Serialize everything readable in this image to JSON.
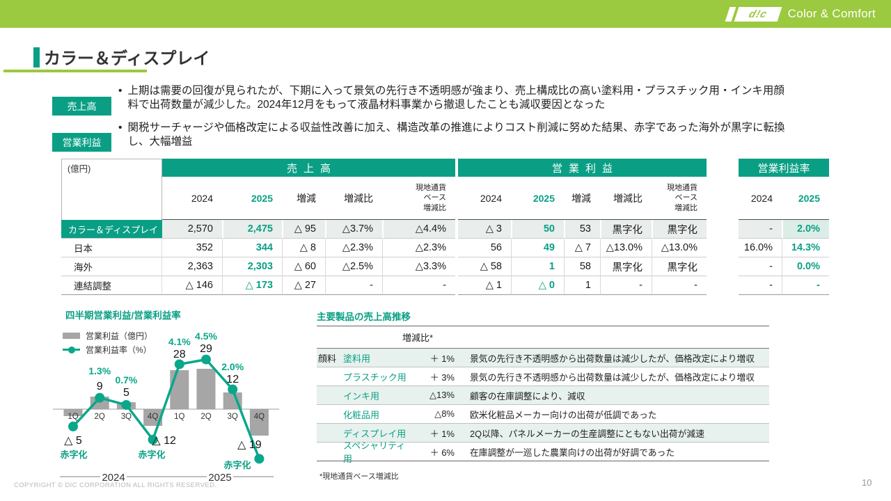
{
  "brand": {
    "logo_text": "d!c",
    "tagline": "Color & Comfort"
  },
  "page": {
    "title": "カラー＆ディスプレイ",
    "copyright": "COPYRIGHT © DIC CORPORATION ALL RIGHTS RESERVED.",
    "page_number": "10"
  },
  "colors": {
    "accent": "#0a9f85",
    "banner_green": "#9bc93f",
    "bar_gray": "#a6a6a6",
    "line_teal": "#0aa78b"
  },
  "summary": [
    {
      "label": "売上高",
      "bullet": "•",
      "text": "上期は需要の回復が見られたが、下期に入って景気の先行き不透明感が強まり、売上構成比の高い塗料用・プラスチック用・インキ用顔料で出荷数量が減少した。2024年12月をもって液晶材料事業から撤退したことも減収要因となった"
    },
    {
      "label": "営業利益",
      "bullet": "•",
      "text": "関税サーチャージや価格改定による収益性改善に加え、構造改革の推進によりコスト削減に努めた結果、赤字であった海外が黒字に転換し、大幅増益"
    }
  ],
  "fin_table": {
    "unit": "(億円)",
    "sections": [
      {
        "title": "売上高",
        "spread": true,
        "cols": [
          "2024",
          "2025",
          "増減",
          "増減比",
          "現地通貨\nベース\n増減比"
        ]
      },
      {
        "title": "営業利益",
        "spread": true,
        "cols": [
          "2024",
          "2025",
          "増減",
          "増減比",
          "現地通貨\nベース\n増減比"
        ]
      },
      {
        "title": "営業利益率",
        "spread": false,
        "cols": [
          "2024",
          "2025"
        ]
      }
    ],
    "rows": [
      {
        "label": "カラー＆ディスプレイ",
        "highlight": true,
        "values": [
          [
            "2,570",
            "2,475",
            "△ 95",
            "△3.7%",
            "△4.4%"
          ],
          [
            "△ 3",
            "50",
            "53",
            "黒字化",
            "黒字化"
          ],
          [
            "-",
            "2.0%"
          ]
        ]
      },
      {
        "label": "日本",
        "highlight": false,
        "values": [
          [
            "352",
            "344",
            "△ 8",
            "△2.3%",
            "△2.3%"
          ],
          [
            "56",
            "49",
            "△ 7",
            "△13.0%",
            "△13.0%"
          ],
          [
            "16.0%",
            "14.3%"
          ]
        ]
      },
      {
        "label": "海外",
        "highlight": false,
        "values": [
          [
            "2,363",
            "2,303",
            "△ 60",
            "△2.5%",
            "△3.3%"
          ],
          [
            "△ 58",
            "1",
            "58",
            "黒字化",
            "黒字化"
          ],
          [
            "-",
            "0.0%"
          ]
        ]
      },
      {
        "label": "連結調整",
        "highlight": false,
        "values": [
          [
            "△ 146",
            "△ 173",
            "△ 27",
            "-",
            "-"
          ],
          [
            "△ 1",
            "△ 0",
            "1",
            "-",
            "-"
          ],
          [
            "-",
            "-"
          ]
        ]
      }
    ]
  },
  "chart_data": {
    "type": "bar+line",
    "title": "四半期営業利益/営業利益率",
    "categories": [
      "1Q",
      "2Q",
      "3Q",
      "4Q",
      "1Q",
      "2Q",
      "3Q",
      "4Q"
    ],
    "year_groups": [
      "2024",
      "2025"
    ],
    "series": [
      {
        "name": "営業利益（億円）",
        "type": "bar",
        "values": [
          -5,
          9,
          5,
          -12,
          28,
          29,
          12,
          -19
        ],
        "labels": [
          "△ 5",
          "9",
          "5",
          "△ 12",
          "28",
          "29",
          "12",
          "△ 19"
        ]
      },
      {
        "name": "営業利益率（%）",
        "type": "line",
        "values": [
          -1.1,
          1.3,
          0.7,
          -2.2,
          4.1,
          4.5,
          2.0,
          -3.8
        ],
        "labels": [
          "",
          "1.3%",
          "0.7%",
          "",
          "4.1%",
          "4.5%",
          "2.0%",
          ""
        ],
        "loss_points": [
          0,
          3,
          7
        ],
        "loss_label": "赤字化",
        "note": "negative line values estimated from plot"
      }
    ]
  },
  "products": {
    "title": "主要製品の売上高推移",
    "col_header": "増減比*",
    "group_label": "顔料",
    "rows": [
      {
        "name": "塗料用",
        "value": "＋ 1%",
        "desc": "景気の先行き不透明感から出荷数量は減少したが、価格改定により増収"
      },
      {
        "name": "プラスチック用",
        "value": "＋ 3%",
        "desc": "景気の先行き不透明感から出荷数量は減少したが、価格改定により増収"
      },
      {
        "name": "インキ用",
        "value": "△13%",
        "desc": "顧客の在庫調整により、減収"
      },
      {
        "name": "化粧品用",
        "value": "△8%",
        "desc": "欧米化粧品メーカー向けの出荷が低調であった"
      },
      {
        "name": "ディスプレイ用",
        "value": "＋ 1%",
        "desc": "2Q以降、パネルメーカーの生産調整にともない出荷が減速"
      },
      {
        "name": "スペシャリティ用",
        "value": "＋ 6%",
        "desc": "在庫調整が一巡した農業向けの出荷が好調であった"
      }
    ],
    "footnote": "*現地通貨ベース増減比"
  }
}
